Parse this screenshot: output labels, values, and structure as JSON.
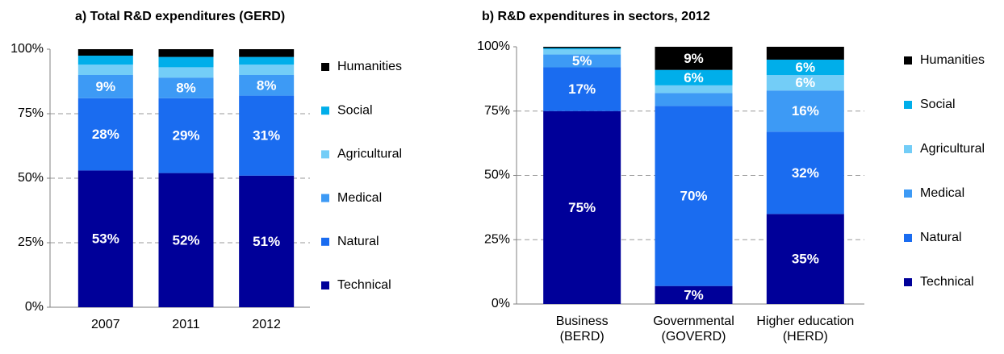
{
  "chart_data": [
    {
      "type": "stacked_bar",
      "title": "a) Total R&D expenditures (GERD)",
      "categories": [
        [
          "2007"
        ],
        [
          "2011"
        ],
        [
          "2012"
        ]
      ],
      "series": [
        {
          "name": "Technical",
          "color": "#000099",
          "values": [
            53,
            52,
            51
          ],
          "value_labels": [
            "53%",
            "52%",
            "51%"
          ]
        },
        {
          "name": "Natural",
          "color": "#1a6cf0",
          "values": [
            28,
            29,
            31
          ],
          "value_labels": [
            "28%",
            "29%",
            "31%"
          ]
        },
        {
          "name": "Medical",
          "color": "#3d9af5",
          "values": [
            9,
            8,
            8
          ],
          "value_labels": [
            "9%",
            "8%",
            "8%"
          ]
        },
        {
          "name": "Agricultural",
          "color": "#73cdf7",
          "values": [
            4,
            4,
            4
          ],
          "value_labels": [
            null,
            null,
            null
          ]
        },
        {
          "name": "Social",
          "color": "#00aeea",
          "values": [
            3.5,
            4,
            3
          ],
          "value_labels": [
            null,
            null,
            null
          ]
        },
        {
          "name": "Humanities",
          "color": "#000000",
          "values": [
            2.5,
            3,
            3
          ],
          "value_labels": [
            null,
            null,
            null
          ]
        }
      ],
      "ylim": [
        0,
        100
      ],
      "yticks": [
        {
          "value": 0,
          "label": "0%"
        },
        {
          "value": 25,
          "label": "25%"
        },
        {
          "value": 50,
          "label": "50%"
        },
        {
          "value": 75,
          "label": "75%"
        },
        {
          "value": 100,
          "label": "100%"
        }
      ],
      "grid": true
    },
    {
      "type": "stacked_bar",
      "title": "b) R&D expenditures in sectors, 2012",
      "categories": [
        [
          "Business",
          "(BERD)"
        ],
        [
          "Governmental",
          "(GOVERD)"
        ],
        [
          "Higher education",
          "(HERD)"
        ]
      ],
      "series": [
        {
          "name": "Technical",
          "color": "#000099",
          "values": [
            75,
            7,
            35
          ],
          "value_labels": [
            "75%",
            "7%",
            "35%"
          ]
        },
        {
          "name": "Natural",
          "color": "#1a6cf0",
          "values": [
            17,
            70,
            32
          ],
          "value_labels": [
            "17%",
            "70%",
            "32%"
          ]
        },
        {
          "name": "Medical",
          "color": "#3d9af5",
          "values": [
            5,
            5,
            16
          ],
          "value_labels": [
            "5%",
            null,
            "16%"
          ]
        },
        {
          "name": "Agricultural",
          "color": "#73cdf7",
          "values": [
            2,
            3,
            6
          ],
          "value_labels": [
            null,
            null,
            "6%"
          ]
        },
        {
          "name": "Social",
          "color": "#00aeea",
          "values": [
            0.5,
            6,
            6
          ],
          "value_labels": [
            null,
            "6%",
            "6%"
          ]
        },
        {
          "name": "Humanities",
          "color": "#000000",
          "values": [
            0.5,
            9,
            5
          ],
          "value_labels": [
            null,
            "9%",
            null
          ]
        }
      ],
      "ylim": [
        0,
        100
      ],
      "yticks": [
        {
          "value": 0,
          "label": "0%"
        },
        {
          "value": 25,
          "label": "25%"
        },
        {
          "value": 50,
          "label": "50%"
        },
        {
          "value": 75,
          "label": "75%"
        },
        {
          "value": 100,
          "label": "100%"
        }
      ],
      "grid": true
    }
  ]
}
